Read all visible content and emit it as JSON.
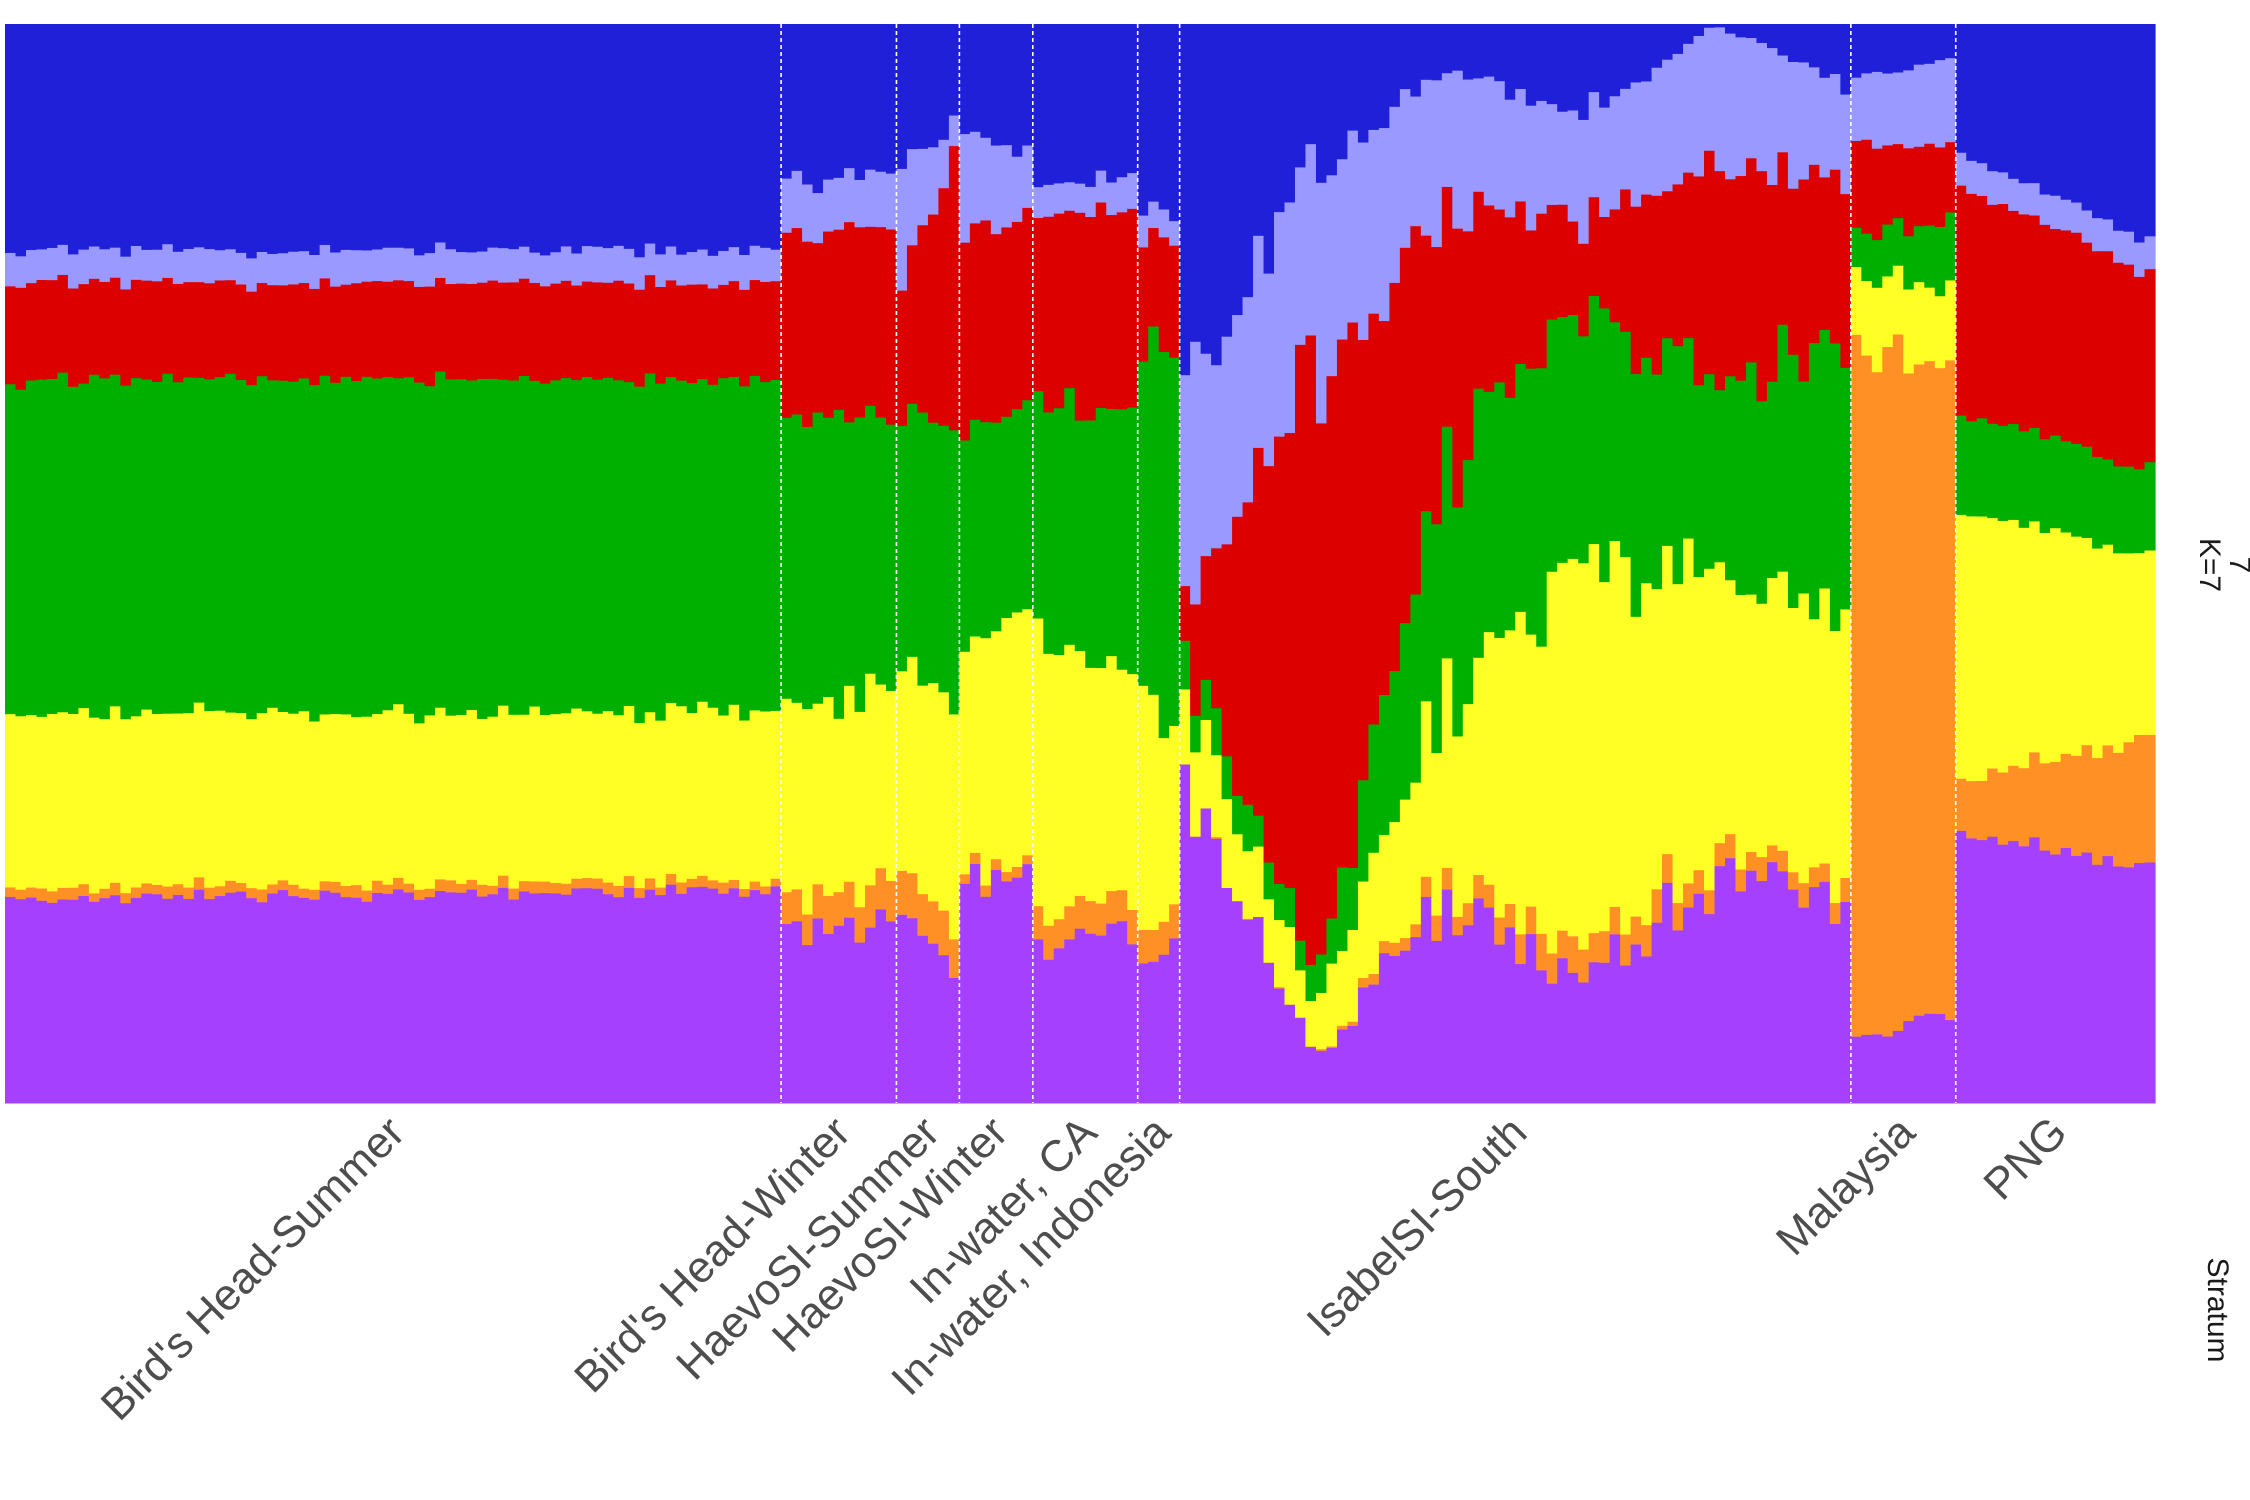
{
  "chart_data": {
    "type": "stacked-bar",
    "description_scope": "STRUCTURE-style admixture barplot; each bar is one individual, bars sum to 1",
    "facet_label_line1": "7",
    "facet_label_line2": "K=7",
    "x_axis_title": "Stratum",
    "grid": false,
    "legend": "none",
    "ylim": [
      0,
      1
    ],
    "clusters": [
      {
        "id": "purple",
        "color": "#A640FF"
      },
      {
        "id": "orange",
        "color": "#FF9026"
      },
      {
        "id": "yellow",
        "color": "#FFFF26"
      },
      {
        "id": "green",
        "color": "#00B000"
      },
      {
        "id": "red",
        "color": "#DD0000"
      },
      {
        "id": "lightblue",
        "color": "#9999FF"
      },
      {
        "id": "blue",
        "color": "#2020D8"
      }
    ],
    "strata": [
      {
        "name": "Bird's Head-Summer",
        "n": 74,
        "profile": [
          [
            0.19,
            0.01,
            0.16,
            0.31,
            0.09,
            0.03,
            0.21
          ],
          [
            0.197,
            0.009,
            0.157,
            0.308,
            0.089,
            0.031,
            0.209
          ]
        ]
      },
      {
        "name": "Bird's Head-Winter",
        "n": 11,
        "profile": [
          [
            0.16,
            0.03,
            0.18,
            0.26,
            0.17,
            0.05,
            0.15
          ],
          [
            0.17,
            0.04,
            0.17,
            0.26,
            0.17,
            0.05,
            0.14
          ]
        ]
      },
      {
        "name": "HaevoSI-Summer",
        "n": 6,
        "profile": [
          [
            0.17,
            0.04,
            0.19,
            0.24,
            0.12,
            0.1,
            0.14
          ],
          [
            0.13,
            0.04,
            0.2,
            0.26,
            0.25,
            0.03,
            0.09
          ]
        ]
      },
      {
        "name": "HaevoSI-Winter",
        "n": 7,
        "profile": [
          [
            0.21,
            0.01,
            0.21,
            0.2,
            0.18,
            0.09,
            0.1
          ],
          [
            0.21,
            0.01,
            0.23,
            0.19,
            0.18,
            0.06,
            0.12
          ]
        ]
      },
      {
        "name": "In-water, CA",
        "n": 10,
        "profile": [
          [
            0.15,
            0.03,
            0.25,
            0.23,
            0.17,
            0.03,
            0.14
          ],
          [
            0.16,
            0.03,
            0.22,
            0.23,
            0.19,
            0.03,
            0.14
          ]
        ]
      },
      {
        "name": "In-water, Indonesia",
        "n": 4,
        "profile": [
          [
            0.12,
            0.03,
            0.22,
            0.32,
            0.1,
            0.03,
            0.18
          ],
          [
            0.16,
            0.03,
            0.17,
            0.35,
            0.1,
            0.02,
            0.17
          ]
        ]
      },
      {
        "name": "IsabelSI-South",
        "n": 64,
        "profile": [
          [
            0.28,
            0.0,
            0.08,
            0.04,
            0.05,
            0.21,
            0.34
          ],
          [
            0.04,
            0.0,
            0.05,
            0.03,
            0.55,
            0.2,
            0.13
          ],
          [
            0.19,
            0.02,
            0.18,
            0.2,
            0.24,
            0.13,
            0.04
          ],
          [
            0.11,
            0.03,
            0.35,
            0.24,
            0.08,
            0.1,
            0.09
          ],
          [
            0.2,
            0.02,
            0.26,
            0.19,
            0.2,
            0.13,
            0.0
          ],
          [
            0.2,
            0.02,
            0.23,
            0.24,
            0.16,
            0.09,
            0.06
          ]
        ]
      },
      {
        "name": "Malaysia",
        "n": 10,
        "profile": [
          [
            0.06,
            0.64,
            0.07,
            0.04,
            0.08,
            0.06,
            0.05
          ],
          [
            0.08,
            0.6,
            0.07,
            0.06,
            0.07,
            0.08,
            0.03
          ]
        ]
      },
      {
        "name": "PNG",
        "n": 19,
        "profile": [
          [
            0.25,
            0.05,
            0.25,
            0.09,
            0.21,
            0.03,
            0.12
          ],
          [
            0.22,
            0.12,
            0.17,
            0.08,
            0.18,
            0.03,
            0.2
          ]
        ]
      }
    ]
  }
}
